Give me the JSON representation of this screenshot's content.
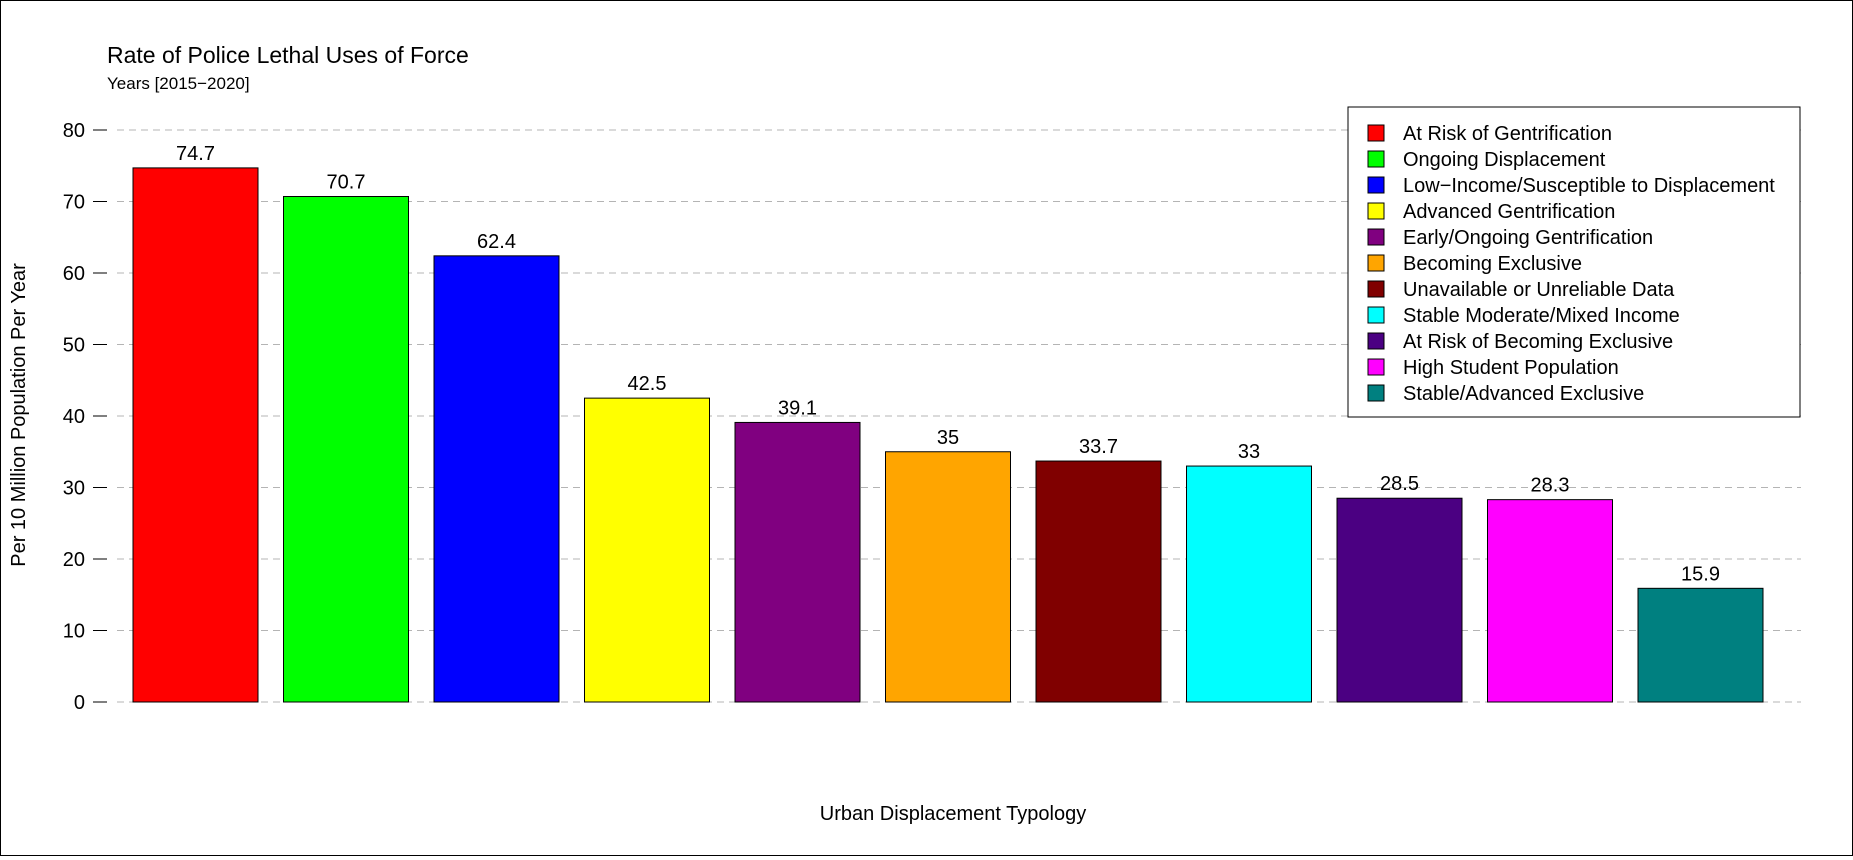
{
  "chart_data": {
    "type": "bar",
    "title": "Rate of Police Lethal Uses of Force",
    "subtitle": "Years [2015−2020]",
    "xlabel": "Urban Displacement Typology",
    "ylabel": "Per 10 Million Population Per Year",
    "ylim": [
      0,
      80
    ],
    "yticks": [
      0,
      10,
      20,
      30,
      40,
      50,
      60,
      70,
      80
    ],
    "grid": "horizontal dashed",
    "legend_position": "top-right",
    "categories": [
      "At Risk of Gentrification",
      "Ongoing Displacement",
      "Low−Income/Susceptible to Displacement",
      "Advanced Gentrification",
      "Early/Ongoing Gentrification",
      "Becoming Exclusive",
      "Unavailable or Unreliable Data",
      "Stable Moderate/Mixed Income",
      "At Risk of Becoming Exclusive",
      "High Student Population",
      "Stable/Advanced Exclusive"
    ],
    "values": [
      74.7,
      70.7,
      62.4,
      42.5,
      39.1,
      35,
      33.7,
      33,
      28.5,
      28.3,
      15.9
    ],
    "value_labels": [
      "74.7",
      "70.7",
      "62.4",
      "42.5",
      "39.1",
      "35",
      "33.7",
      "33",
      "28.5",
      "28.3",
      "15.9"
    ],
    "colors": [
      "#ff0000",
      "#00ff00",
      "#0000ff",
      "#ffff00",
      "#800080",
      "#ffa500",
      "#800000",
      "#00ffff",
      "#4b0082",
      "#ff00ff",
      "#008080"
    ]
  }
}
